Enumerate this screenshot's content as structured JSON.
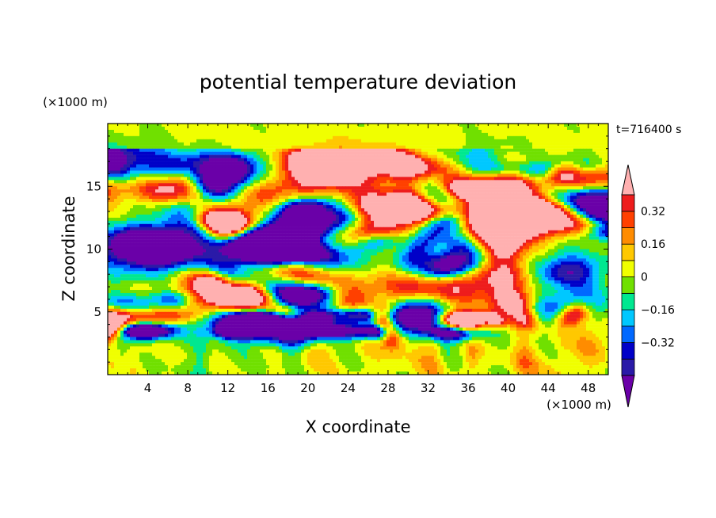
{
  "chart_data": {
    "type": "heatmap",
    "title": "potential temperature deviation",
    "time_label": "t=716400 s",
    "xlabel": "X coordinate",
    "ylabel": "Z coordinate",
    "x_unit_label": "(×1000 m)",
    "y_unit_label": "(×1000 m)",
    "xlim": [
      0,
      50
    ],
    "ylim": [
      0,
      20
    ],
    "x_ticks": [
      4,
      8,
      12,
      16,
      20,
      24,
      28,
      32,
      36,
      40,
      44,
      48
    ],
    "y_ticks": [
      5,
      10,
      15
    ],
    "colorbar": {
      "levels": [
        -0.48,
        -0.4,
        -0.32,
        -0.24,
        -0.16,
        -0.08,
        0,
        0.08,
        0.16,
        0.24,
        0.32,
        0.4
      ],
      "labeled_ticks": [
        -0.32,
        -0.16,
        0,
        0.16,
        0.32
      ],
      "tick_labels": [
        "−0.32",
        "−0.16",
        "0",
        "0.16",
        "0.32"
      ],
      "colors": [
        "#6a00a8",
        "#2a1aa8",
        "#0000c8",
        "#0068ff",
        "#00c8ff",
        "#00e890",
        "#70e000",
        "#f0ff00",
        "#ffc800",
        "#ff8c00",
        "#ff4000",
        "#ee1c1c",
        "#ffb0b0"
      ]
    }
  }
}
